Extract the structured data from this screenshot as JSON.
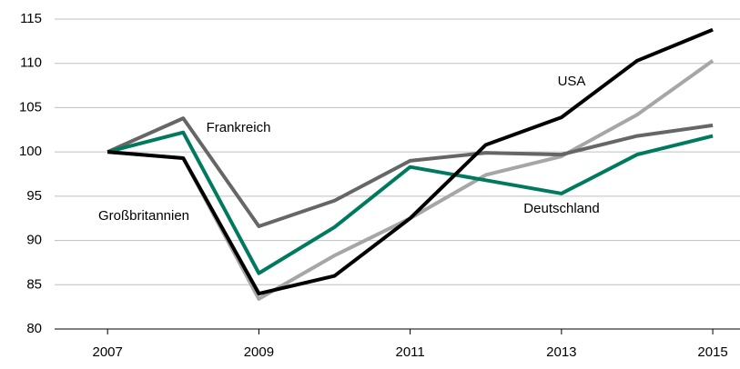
{
  "chart_data": {
    "type": "line",
    "x": [
      2007,
      2008,
      2009,
      2010,
      2011,
      2012,
      2013,
      2014,
      2015
    ],
    "series": [
      {
        "name": "Großbritannien",
        "color": "#a6a6a6",
        "values": [
          100,
          99.3,
          83.4,
          88.3,
          92.5,
          97.4,
          99.5,
          104.2,
          110.3
        ]
      },
      {
        "name": "Frankreich",
        "color": "#666666",
        "values": [
          100,
          103.8,
          91.6,
          94.5,
          99,
          99.9,
          99.7,
          101.8,
          103
        ]
      },
      {
        "name": "Deutschland",
        "color": "#007a5e",
        "values": [
          100,
          102.2,
          86.3,
          91.5,
          98.3,
          96.8,
          95.3,
          99.7,
          101.8
        ]
      },
      {
        "name": "USA",
        "color": "#000000",
        "values": [
          100,
          99.3,
          84,
          86,
          92.5,
          100.8,
          103.9,
          110.3,
          113.8
        ]
      }
    ],
    "xlim": [
      2006.3,
      2015.36
    ],
    "xticks": [
      2007,
      2009,
      2011,
      2013,
      2015
    ],
    "ylim": [
      80,
      115
    ],
    "yticks": [
      80,
      85,
      90,
      95,
      100,
      105,
      110,
      115
    ],
    "grid": true
  }
}
